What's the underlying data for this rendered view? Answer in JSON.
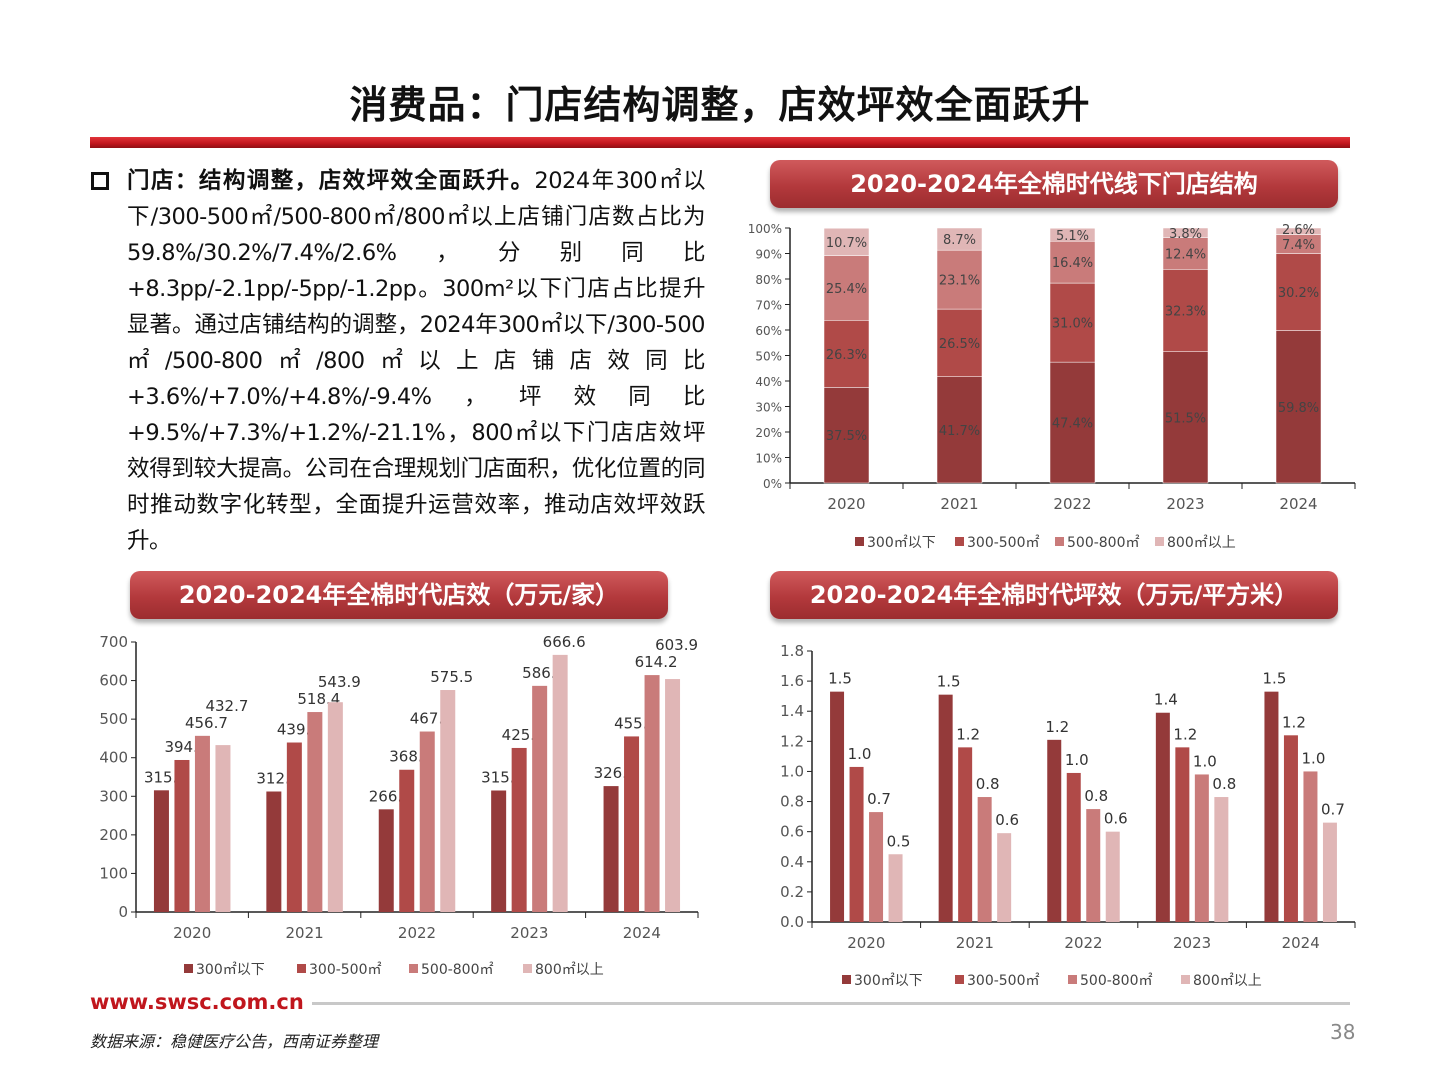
{
  "title": "消费品：门店结构调整，店效坪效全面跃升",
  "paragraph": {
    "lead": "门店：结构调整，店效坪效全面跃升。",
    "body": "2024年300㎡以下/300-500㎡/500-800㎡/800㎡以上店铺门店数占比为59.8%/30.2%/7.4%/2.6%，分别同比+8.3pp/-2.1pp/-5pp/-1.2pp。300m²以下门店占比提升显著。通过店铺结构的调整，2024年300㎡以下/300-500㎡/500-800㎡/800㎡以上店铺店效同比+3.6%/+7.0%/+4.8%/-9.4%，坪效同比+9.5%/+7.3%/+1.2%/-21.1%，800㎡以下门店店效坪效得到较大提高。公司在合理规划门店面积，优化位置的同时推动数字化转型，全面提升运营效率，推动店效坪效跃升。"
  },
  "footer": {
    "url": "www.swsc.com.cn",
    "source": "数据来源：稳健医疗公告，西南证券整理",
    "page": "38"
  },
  "colors": {
    "s1": "#943a3a",
    "s2": "#b04a48",
    "s3": "#c97b7a",
    "s4": "#e0b6b6",
    "axis": "#222222",
    "tick": "#555555"
  },
  "chart_data": [
    {
      "type": "bar",
      "stacked": true,
      "title": "2020-2024年全棉时代线下门店结构",
      "categories": [
        "2020",
        "2021",
        "2022",
        "2023",
        "2024"
      ],
      "ylim": [
        0,
        100
      ],
      "yticks": [
        "0%",
        "10%",
        "20%",
        "30%",
        "40%",
        "50%",
        "60%",
        "70%",
        "80%",
        "90%",
        "100%"
      ],
      "legend_position": "bottom",
      "series": [
        {
          "name": "300㎡以下",
          "values": [
            37.5,
            41.7,
            47.4,
            51.5,
            59.8
          ],
          "labels": [
            "37.5%",
            "41.7%",
            "47.4%",
            "51.5%",
            "59.8%"
          ]
        },
        {
          "name": "300-500㎡",
          "values": [
            26.3,
            26.5,
            31.0,
            32.3,
            30.2
          ],
          "labels": [
            "26.3%",
            "26.5%",
            "31.0%",
            "32.3%",
            "30.2%"
          ]
        },
        {
          "name": "500-800㎡",
          "values": [
            25.4,
            23.1,
            16.4,
            12.4,
            7.4
          ],
          "labels": [
            "25.4%",
            "23.1%",
            "16.4%",
            "12.4%",
            "7.4%"
          ]
        },
        {
          "name": "800㎡以上",
          "values": [
            10.7,
            8.7,
            5.1,
            3.8,
            2.6
          ],
          "labels": [
            "10.7%",
            "8.7%",
            "5.1%",
            "3.8%",
            "2.6%"
          ]
        }
      ]
    },
    {
      "type": "bar",
      "title": "2020-2024年全棉时代店效（万元/家）",
      "categories": [
        "2020",
        "2021",
        "2022",
        "2023",
        "2024"
      ],
      "ylim": [
        0,
        700
      ],
      "yticks": [
        "0",
        "100",
        "200",
        "300",
        "400",
        "500",
        "600",
        "700"
      ],
      "legend_position": "bottom",
      "series": [
        {
          "name": "300㎡以下",
          "values": [
            315.5,
            312.4,
            266.2,
            315.0,
            326.4
          ],
          "labels": [
            "315.5",
            "312.4",
            "266.2",
            "315.0",
            "326.4"
          ]
        },
        {
          "name": "300-500㎡",
          "values": [
            394.1,
            439.4,
            368.8,
            425.3,
            455.2
          ],
          "labels": [
            "394.1",
            "439.4",
            "368.8",
            "425.3",
            "455.2"
          ]
        },
        {
          "name": "500-800㎡",
          "values": [
            456.7,
            518.4,
            467.9,
            586.3,
            614.2
          ],
          "labels": [
            "456.7",
            "518.4",
            "467.9",
            "586.3",
            "614.2"
          ]
        },
        {
          "name": "800㎡以上",
          "values": [
            432.7,
            543.9,
            575.5,
            666.6,
            603.9
          ],
          "labels": [
            "432.7",
            "543.9",
            "575.5",
            "666.6",
            "603.9"
          ]
        }
      ]
    },
    {
      "type": "bar",
      "title": "2020-2024年全棉时代坪效（万元/平方米）",
      "categories": [
        "2020",
        "2021",
        "2022",
        "2023",
        "2024"
      ],
      "ylim": [
        0,
        1.8
      ],
      "yticks": [
        "0.0",
        "0.2",
        "0.4",
        "0.6",
        "0.8",
        "1.0",
        "1.2",
        "1.4",
        "1.6",
        "1.8"
      ],
      "legend_position": "bottom",
      "series": [
        {
          "name": "300㎡以下",
          "values": [
            1.53,
            1.51,
            1.21,
            1.39,
            1.53
          ],
          "labels": [
            "1.5",
            "1.5",
            "1.2",
            "1.4",
            "1.5"
          ]
        },
        {
          "name": "300-500㎡",
          "values": [
            1.03,
            1.16,
            0.99,
            1.16,
            1.24
          ],
          "labels": [
            "1.0",
            "1.2",
            "1.0",
            "1.2",
            "1.2"
          ]
        },
        {
          "name": "500-800㎡",
          "values": [
            0.73,
            0.83,
            0.75,
            0.98,
            1.0
          ],
          "labels": [
            "0.7",
            "0.8",
            "0.8",
            "1.0",
            "1.0"
          ]
        },
        {
          "name": "800㎡以上",
          "values": [
            0.45,
            0.59,
            0.6,
            0.83,
            0.66
          ],
          "labels": [
            "0.5",
            "0.6",
            "0.6",
            "0.8",
            "0.7"
          ]
        }
      ]
    }
  ]
}
